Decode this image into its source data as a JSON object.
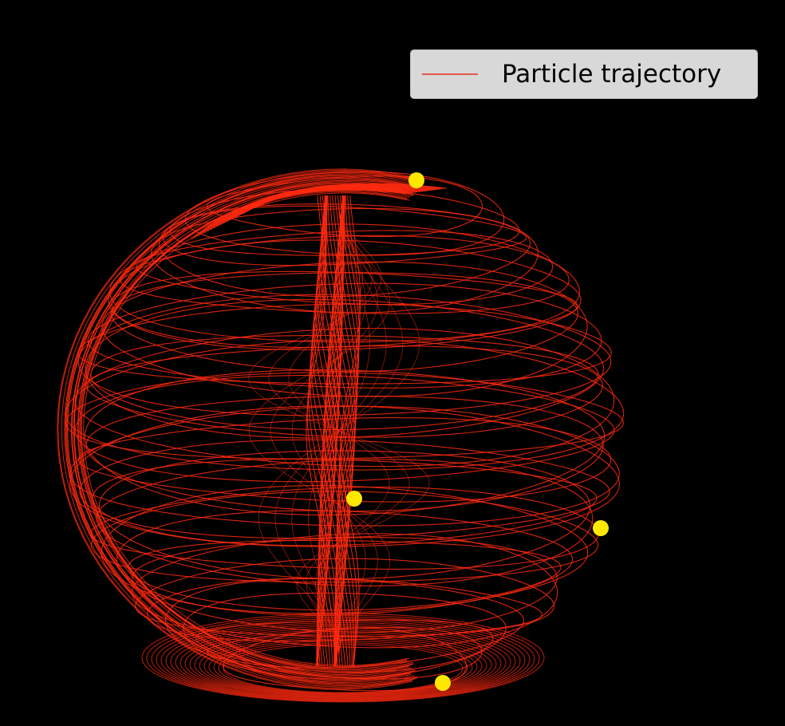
{
  "chart_data": {
    "type": "line",
    "title": "",
    "xlabel": "",
    "ylabel": "",
    "grid": false,
    "axes_visible": false,
    "background": "#000000",
    "legend": {
      "placement": "top-right",
      "entries": [
        "Particle trajectory"
      ]
    },
    "series": [
      {
        "name": "Particle trajectory",
        "color": "#ff2a10",
        "kind": "3d-trajectory-on-sphere"
      }
    ],
    "markers": {
      "color": "#ffe800",
      "count": 4
    }
  }
}
